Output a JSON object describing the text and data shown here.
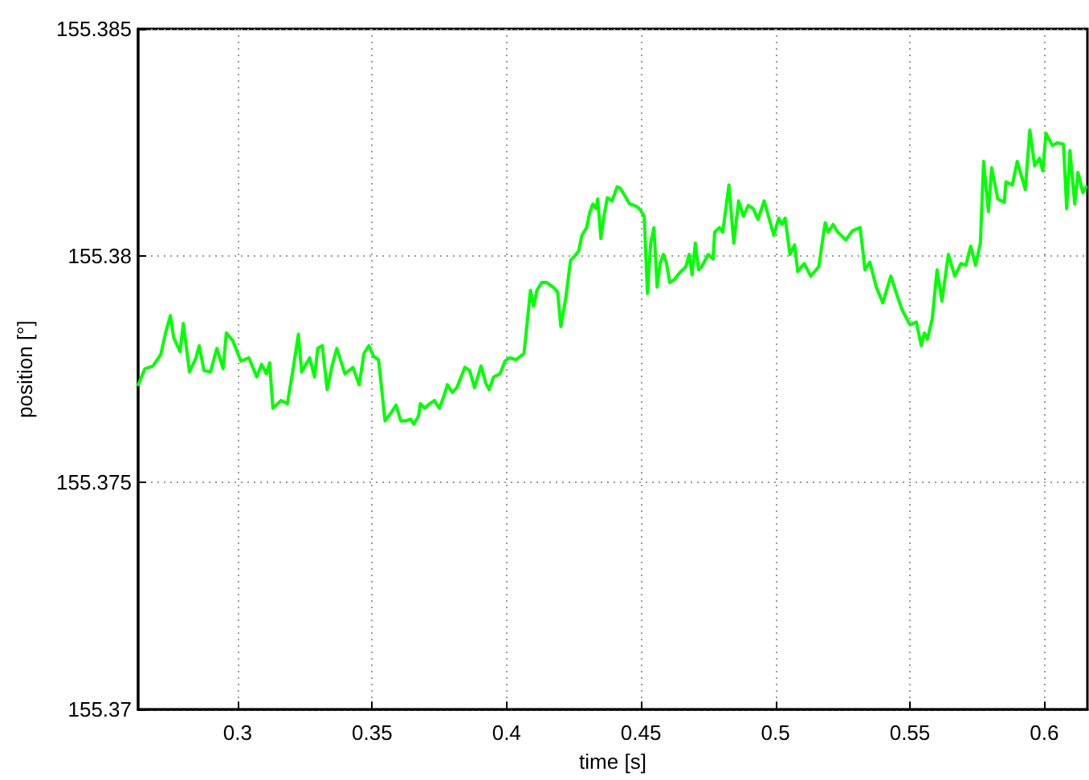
{
  "chart_data": {
    "type": "line",
    "xlabel": "time [s]",
    "ylabel": "position [°]",
    "xlim": [
      0.263,
      0.616
    ],
    "xticks": [
      0.3,
      0.35,
      0.4,
      0.45,
      0.5,
      0.55,
      0.6
    ],
    "ylim": [
      155.37,
      155.385
    ],
    "yticks": [
      155.37,
      155.375,
      155.38,
      155.385
    ],
    "grid": true,
    "marker": "none",
    "line_style": "solid",
    "series": [
      {
        "color": "#00ff00",
        "x": [
          0.2631,
          0.2655,
          0.2685,
          0.2714,
          0.2732,
          0.275,
          0.2762,
          0.2786,
          0.2798,
          0.2821,
          0.2845,
          0.2857,
          0.2875,
          0.2899,
          0.2923,
          0.2946,
          0.2958,
          0.2982,
          0.3012,
          0.3042,
          0.3071,
          0.3089,
          0.3107,
          0.3119,
          0.3131,
          0.3161,
          0.3185,
          0.3208,
          0.3226,
          0.3238,
          0.3268,
          0.3286,
          0.3298,
          0.3315,
          0.3333,
          0.3351,
          0.3369,
          0.3399,
          0.3429,
          0.3452,
          0.347,
          0.3488,
          0.3506,
          0.3524,
          0.3536,
          0.3548,
          0.3571,
          0.3589,
          0.3607,
          0.3625,
          0.3643,
          0.3655,
          0.3673,
          0.3679,
          0.3696,
          0.3714,
          0.3732,
          0.375,
          0.3768,
          0.378,
          0.3798,
          0.3815,
          0.3845,
          0.3863,
          0.3881,
          0.3905,
          0.3923,
          0.3935,
          0.3952,
          0.3976,
          0.3994,
          0.4012,
          0.4036,
          0.4065,
          0.4077,
          0.4089,
          0.4101,
          0.4113,
          0.4131,
          0.4149,
          0.4173,
          0.419,
          0.4202,
          0.422,
          0.4238,
          0.425,
          0.4268,
          0.428,
          0.4298,
          0.431,
          0.4321,
          0.4333,
          0.4339,
          0.4351,
          0.4363,
          0.4375,
          0.4393,
          0.4411,
          0.4423,
          0.444,
          0.4458,
          0.4476,
          0.4494,
          0.4512,
          0.4524,
          0.4536,
          0.4548,
          0.456,
          0.4571,
          0.4583,
          0.4595,
          0.4607,
          0.4625,
          0.4643,
          0.4667,
          0.4679,
          0.469,
          0.4702,
          0.4714,
          0.4726,
          0.475,
          0.4768,
          0.4774,
          0.4792,
          0.4804,
          0.4827,
          0.4845,
          0.4863,
          0.4881,
          0.4899,
          0.4917,
          0.4935,
          0.4958,
          0.4994,
          0.5012,
          0.5024,
          0.5036,
          0.5054,
          0.5071,
          0.5083,
          0.5107,
          0.5131,
          0.5161,
          0.5185,
          0.5196,
          0.5214,
          0.5232,
          0.5262,
          0.5286,
          0.5315,
          0.5333,
          0.5351,
          0.5375,
          0.5399,
          0.5429,
          0.5452,
          0.547,
          0.55,
          0.5524,
          0.5542,
          0.5554,
          0.5565,
          0.5583,
          0.5601,
          0.5619,
          0.5643,
          0.5667,
          0.569,
          0.5708,
          0.5726,
          0.5744,
          0.5762,
          0.5774,
          0.5792,
          0.5804,
          0.5827,
          0.5851,
          0.5857,
          0.5881,
          0.5899,
          0.5929,
          0.5946,
          0.5964,
          0.5982,
          0.5994,
          0.6006,
          0.603,
          0.6048,
          0.6071,
          0.6083,
          0.6095,
          0.6113,
          0.6125,
          0.6143,
          0.6155
        ],
        "values": [
          155.37716,
          155.37751,
          155.37757,
          155.37782,
          155.3783,
          155.37868,
          155.3782,
          155.37789,
          155.37851,
          155.37744,
          155.37775,
          155.37802,
          155.37747,
          155.37744,
          155.37796,
          155.37751,
          155.3783,
          155.37813,
          155.37768,
          155.37775,
          155.37733,
          155.37761,
          155.3774,
          155.37764,
          155.37664,
          155.37681,
          155.37674,
          155.37757,
          155.37827,
          155.37744,
          155.37775,
          155.37733,
          155.37796,
          155.37802,
          155.37705,
          155.37757,
          155.37796,
          155.3774,
          155.37754,
          155.37716,
          155.37785,
          155.37802,
          155.37778,
          155.37771,
          155.37705,
          155.37636,
          155.37654,
          155.37671,
          155.37636,
          155.37636,
          155.3764,
          155.37629,
          155.37647,
          155.37674,
          155.37664,
          155.37674,
          155.37681,
          155.37664,
          155.37692,
          155.37716,
          155.37699,
          155.37709,
          155.37754,
          155.37747,
          155.37709,
          155.37757,
          155.37719,
          155.37705,
          155.37733,
          155.3774,
          155.37768,
          155.37775,
          155.37771,
          155.37785,
          155.37854,
          155.37924,
          155.37889,
          155.37924,
          155.37941,
          155.37941,
          155.37931,
          155.3792,
          155.37844,
          155.37906,
          155.3799,
          155.37997,
          155.3801,
          155.38045,
          155.38062,
          155.38097,
          155.38114,
          155.38104,
          155.38125,
          155.38038,
          155.3809,
          155.38128,
          155.38121,
          155.38152,
          155.38149,
          155.38132,
          155.38114,
          155.38111,
          155.38104,
          155.38087,
          155.37917,
          155.38028,
          155.38062,
          155.37931,
          155.37983,
          155.38003,
          155.37983,
          155.37941,
          155.37948,
          155.37962,
          155.37976,
          155.38003,
          155.37958,
          155.38028,
          155.37969,
          155.37976,
          155.38003,
          155.37993,
          155.38052,
          155.38062,
          155.38052,
          155.38156,
          155.38028,
          155.38121,
          155.38087,
          155.38111,
          155.38104,
          155.3808,
          155.38121,
          155.38045,
          155.38083,
          155.38069,
          155.38083,
          155.38003,
          155.38024,
          155.37965,
          155.37983,
          155.37955,
          155.37976,
          155.38073,
          155.38052,
          155.38069,
          155.38052,
          155.38035,
          155.38055,
          155.38062,
          155.37969,
          155.37986,
          155.37931,
          155.37896,
          155.37955,
          155.37913,
          155.37882,
          155.37848,
          155.37854,
          155.37802,
          155.3783,
          155.37816,
          155.37861,
          155.37969,
          155.379,
          155.38003,
          155.37955,
          155.37983,
          155.37979,
          155.38021,
          155.37979,
          155.38028,
          155.38208,
          155.38097,
          155.38194,
          155.38125,
          155.38118,
          155.38163,
          155.38156,
          155.38208,
          155.38146,
          155.38277,
          155.38198,
          155.38215,
          155.38187,
          155.3827,
          155.38243,
          155.38249,
          155.38246,
          155.38104,
          155.38232,
          155.38114,
          155.38184,
          155.38139,
          155.38152
        ]
      }
    ]
  }
}
